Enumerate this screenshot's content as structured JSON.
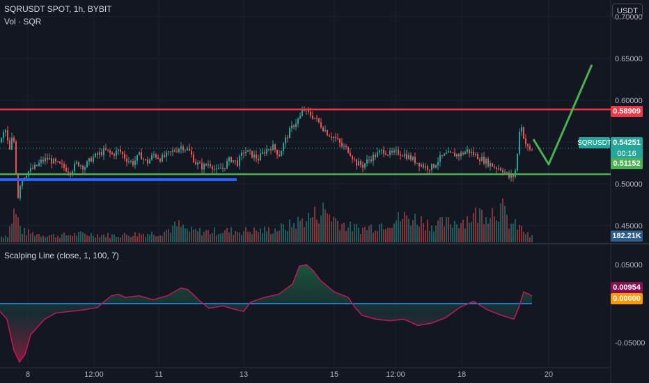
{
  "header": {
    "title": "SQRUSDT SPOT, 1h, BYBIT",
    "volume_label": "Vol · SQR",
    "currency_button": "USDT",
    "indicator_label": "Scalping Line (close, 1, 100, 7)"
  },
  "tags": {
    "resistance": "0.58909",
    "symbol": "SQRUSDT",
    "last_price": "0.54251",
    "countdown": "00:16",
    "support": "0.51152",
    "volume": "182.21K",
    "osc_value": "0.00954",
    "osc_zero": "0.00000"
  },
  "colors": {
    "background": "#131722",
    "up": "#26a69a",
    "down": "#ef5350",
    "resistance_line": "#f23645",
    "support_line": "#4caf50",
    "blue_line": "#2962ff",
    "projection": "#4caf50",
    "osc_line": "#c2185b",
    "osc_zero_line": "#2196f3"
  },
  "chart_data": {
    "type": "candlestick",
    "symbol": "SQRUSDT",
    "exchange": "BYBIT",
    "interval": "1h",
    "price_axis": {
      "ticks": [
        "0.70000",
        "0.65000",
        "0.60000",
        "0.55000",
        "0.50000",
        "0.45000"
      ],
      "ylim": [
        0.43,
        0.72
      ]
    },
    "x_ticks": [
      "8",
      "12:00",
      "11",
      "13",
      "15",
      "12:00",
      "18",
      "20"
    ],
    "horizontal_levels": {
      "resistance": 0.58909,
      "support": 0.51152
    },
    "last_price": 0.54251,
    "price_path": [
      [
        0,
        0.55
      ],
      [
        4,
        0.56
      ],
      [
        8,
        0.565
      ],
      [
        12,
        0.535
      ],
      [
        16,
        0.553
      ],
      [
        20,
        0.55
      ],
      [
        24,
        0.48
      ],
      [
        28,
        0.5
      ],
      [
        34,
        0.51
      ],
      [
        40,
        0.515
      ],
      [
        50,
        0.52
      ],
      [
        60,
        0.528
      ],
      [
        68,
        0.53
      ],
      [
        78,
        0.525
      ],
      [
        90,
        0.52
      ],
      [
        100,
        0.515
      ],
      [
        110,
        0.525
      ],
      [
        120,
        0.52
      ],
      [
        130,
        0.53
      ],
      [
        140,
        0.535
      ],
      [
        150,
        0.54
      ],
      [
        160,
        0.535
      ],
      [
        170,
        0.54
      ],
      [
        180,
        0.53
      ],
      [
        190,
        0.525
      ],
      [
        200,
        0.535
      ],
      [
        210,
        0.525
      ],
      [
        220,
        0.535
      ],
      [
        230,
        0.53
      ],
      [
        240,
        0.535
      ],
      [
        250,
        0.54
      ],
      [
        260,
        0.545
      ],
      [
        270,
        0.54
      ],
      [
        280,
        0.525
      ],
      [
        290,
        0.52
      ],
      [
        300,
        0.525
      ],
      [
        310,
        0.515
      ],
      [
        320,
        0.52
      ],
      [
        330,
        0.53
      ],
      [
        340,
        0.525
      ],
      [
        350,
        0.54
      ],
      [
        360,
        0.535
      ],
      [
        370,
        0.53
      ],
      [
        380,
        0.54
      ],
      [
        390,
        0.545
      ],
      [
        400,
        0.535
      ],
      [
        410,
        0.555
      ],
      [
        420,
        0.57
      ],
      [
        430,
        0.58
      ],
      [
        435,
        0.59
      ],
      [
        440,
        0.585
      ],
      [
        450,
        0.58
      ],
      [
        460,
        0.57
      ],
      [
        470,
        0.56
      ],
      [
        480,
        0.555
      ],
      [
        490,
        0.545
      ],
      [
        500,
        0.54
      ],
      [
        510,
        0.525
      ],
      [
        520,
        0.522
      ],
      [
        530,
        0.53
      ],
      [
        540,
        0.535
      ],
      [
        550,
        0.54
      ],
      [
        560,
        0.535
      ],
      [
        570,
        0.538
      ],
      [
        580,
        0.535
      ],
      [
        590,
        0.53
      ],
      [
        600,
        0.525
      ],
      [
        610,
        0.52
      ],
      [
        620,
        0.52
      ],
      [
        630,
        0.53
      ],
      [
        640,
        0.535
      ],
      [
        650,
        0.535
      ],
      [
        660,
        0.535
      ],
      [
        670,
        0.54
      ],
      [
        680,
        0.535
      ],
      [
        690,
        0.53
      ],
      [
        700,
        0.525
      ],
      [
        710,
        0.52
      ],
      [
        720,
        0.518
      ],
      [
        730,
        0.508
      ],
      [
        738,
        0.51
      ],
      [
        742,
        0.535
      ],
      [
        746,
        0.575
      ],
      [
        750,
        0.56
      ],
      [
        755,
        0.545
      ],
      [
        760,
        0.54
      ],
      [
        764,
        0.542
      ]
    ],
    "volume_path": [
      [
        0,
        0.15
      ],
      [
        10,
        0.2
      ],
      [
        20,
        0.85
      ],
      [
        30,
        0.3
      ],
      [
        40,
        0.25
      ],
      [
        60,
        0.2
      ],
      [
        80,
        0.18
      ],
      [
        100,
        0.2
      ],
      [
        120,
        0.22
      ],
      [
        140,
        0.2
      ],
      [
        160,
        0.18
      ],
      [
        180,
        0.2
      ],
      [
        200,
        0.22
      ],
      [
        230,
        0.25
      ],
      [
        255,
        0.45
      ],
      [
        270,
        0.3
      ],
      [
        300,
        0.28
      ],
      [
        330,
        0.3
      ],
      [
        360,
        0.3
      ],
      [
        390,
        0.32
      ],
      [
        410,
        0.4
      ],
      [
        430,
        0.55
      ],
      [
        450,
        0.7
      ],
      [
        465,
        0.85
      ],
      [
        480,
        0.6
      ],
      [
        500,
        0.4
      ],
      [
        520,
        0.35
      ],
      [
        540,
        0.45
      ],
      [
        560,
        0.55
      ],
      [
        580,
        0.65
      ],
      [
        600,
        0.6
      ],
      [
        620,
        0.45
      ],
      [
        640,
        0.5
      ],
      [
        660,
        0.55
      ],
      [
        680,
        0.7
      ],
      [
        700,
        0.8
      ],
      [
        720,
        0.88
      ],
      [
        730,
        0.5
      ],
      [
        745,
        0.4
      ],
      [
        760,
        0.15
      ]
    ],
    "oscillator": {
      "name": "Scalping Line",
      "params": "(close, 1, 100, 7)",
      "ticks": [
        "0.05000",
        "-0.05000"
      ],
      "ylim": [
        -0.075,
        0.075
      ],
      "current": 0.00954,
      "path": [
        [
          0,
          -0.01
        ],
        [
          10,
          -0.02
        ],
        [
          20,
          -0.06
        ],
        [
          28,
          -0.075
        ],
        [
          36,
          -0.065
        ],
        [
          44,
          -0.04
        ],
        [
          54,
          -0.03
        ],
        [
          64,
          -0.02
        ],
        [
          80,
          -0.012
        ],
        [
          100,
          -0.01
        ],
        [
          120,
          -0.008
        ],
        [
          140,
          -0.005
        ],
        [
          150,
          0.003
        ],
        [
          160,
          0.01
        ],
        [
          170,
          0.012
        ],
        [
          180,
          0.008
        ],
        [
          200,
          0.01
        ],
        [
          220,
          0.005
        ],
        [
          240,
          0.01
        ],
        [
          260,
          0.02
        ],
        [
          270,
          0.018
        ],
        [
          285,
          0.005
        ],
        [
          300,
          -0.006
        ],
        [
          320,
          -0.003
        ],
        [
          340,
          -0.008
        ],
        [
          350,
          -0.01
        ],
        [
          360,
          0.002
        ],
        [
          380,
          0.008
        ],
        [
          400,
          0.012
        ],
        [
          420,
          0.025
        ],
        [
          430,
          0.048
        ],
        [
          440,
          0.05
        ],
        [
          450,
          0.042
        ],
        [
          460,
          0.03
        ],
        [
          480,
          0.015
        ],
        [
          500,
          0.008
        ],
        [
          510,
          -0.005
        ],
        [
          520,
          -0.015
        ],
        [
          540,
          -0.02
        ],
        [
          560,
          -0.022
        ],
        [
          580,
          -0.02
        ],
        [
          600,
          -0.028
        ],
        [
          620,
          -0.025
        ],
        [
          640,
          -0.018
        ],
        [
          660,
          -0.005
        ],
        [
          680,
          0.003
        ],
        [
          700,
          -0.008
        ],
        [
          720,
          -0.015
        ],
        [
          738,
          -0.02
        ],
        [
          745,
          -0.005
        ],
        [
          752,
          0.015
        ],
        [
          760,
          0.012
        ],
        [
          764,
          0.00954
        ]
      ]
    }
  }
}
